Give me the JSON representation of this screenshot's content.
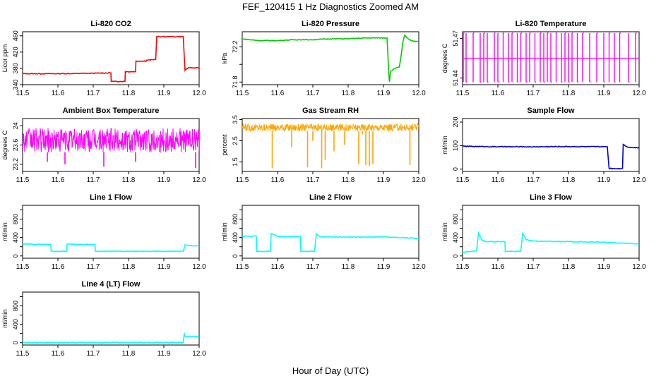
{
  "figure": {
    "title": "FEF_120415 1 Hz Diagnostics Zoomed AM",
    "xlabel": "Hour of Day (UTC)"
  },
  "chart_data": [
    {
      "type": "line",
      "title": "Li-820 CO2",
      "ylabel": "Licor ppm",
      "color": "#ff0000",
      "xlim": [
        11.5,
        12.0
      ],
      "ylim": [
        340,
        470
      ],
      "xticks": [
        11.5,
        11.6,
        11.7,
        11.8,
        11.9,
        12.0
      ],
      "yticks": [
        340,
        380,
        420,
        460
      ],
      "x": [
        11.5,
        11.6,
        11.7,
        11.75,
        11.751,
        11.76,
        11.79,
        11.791,
        11.82,
        11.821,
        11.85,
        11.851,
        11.877,
        11.88,
        11.92,
        11.955,
        11.96,
        11.97,
        12.0
      ],
      "y": [
        367,
        367,
        368,
        369,
        348,
        348,
        348,
        372,
        372,
        398,
        398,
        400,
        402,
        458,
        458,
        458,
        375,
        382,
        381
      ]
    },
    {
      "type": "line",
      "title": "Li-820 Pressure",
      "ylabel": "kPa",
      "color": "#00cc00",
      "xlim": [
        11.5,
        12.0
      ],
      "ylim": [
        71.77,
        72.37
      ],
      "xticks": [
        11.5,
        11.6,
        11.7,
        11.8,
        11.9,
        12.0
      ],
      "yticks": [
        71.8,
        72.0,
        72.2
      ],
      "yticklabels": [
        "71.8",
        "",
        "72.2"
      ],
      "x": [
        11.5,
        11.52,
        11.55,
        11.6,
        11.65,
        11.7,
        11.75,
        11.8,
        11.85,
        11.9,
        11.91,
        11.912,
        11.915,
        11.917,
        11.92,
        11.93,
        11.945,
        11.95,
        11.955,
        11.96,
        11.97,
        11.98,
        11.99,
        12.0
      ],
      "y": [
        72.29,
        72.28,
        72.27,
        72.27,
        72.28,
        72.28,
        72.29,
        72.29,
        72.3,
        72.3,
        72.3,
        72.15,
        71.9,
        71.8,
        71.92,
        71.95,
        71.97,
        72.1,
        72.25,
        72.33,
        72.29,
        72.27,
        72.26,
        72.26
      ]
    },
    {
      "type": "line",
      "title": "Li-820 Temperature",
      "ylabel": "degrees C",
      "color": "#ff00ff",
      "xlim": [
        11.5,
        12.0
      ],
      "ylim": [
        51.435,
        51.475
      ],
      "xticks": [
        11.5,
        11.6,
        11.7,
        11.8,
        11.9,
        12.0
      ],
      "yticks": [
        51.44,
        51.47
      ],
      "base": 51.455,
      "low": 51.437,
      "high": 51.474,
      "spikes": [
        11.502,
        11.51,
        11.53,
        11.55,
        11.56,
        11.57,
        11.59,
        11.6,
        11.615,
        11.63,
        11.64,
        11.655,
        11.665,
        11.68,
        11.69,
        11.705,
        11.72,
        11.73,
        11.74,
        11.75,
        11.765,
        11.78,
        11.79,
        11.8,
        11.81,
        11.825,
        11.84,
        11.86,
        11.88,
        11.9,
        11.915,
        11.93,
        11.945,
        11.97,
        11.99
      ]
    },
    {
      "type": "line",
      "title": "Ambient Box Temperature",
      "ylabel": "degrees C",
      "color": "#ff00ff",
      "xlim": [
        11.5,
        12.0
      ],
      "ylim": [
        23.05,
        24.15
      ],
      "xticks": [
        11.5,
        11.6,
        11.7,
        11.8,
        11.9,
        12.0
      ],
      "yticks": [
        23.2,
        23.6,
        24.0
      ],
      "band": [
        23.45,
        23.95
      ],
      "dips": [
        {
          "x": 11.57,
          "y": 23.25
        },
        {
          "x": 11.62,
          "y": 23.2
        },
        {
          "x": 11.73,
          "y": 23.15
        },
        {
          "x": 11.82,
          "y": 23.25
        },
        {
          "x": 11.99,
          "y": 23.12
        }
      ]
    },
    {
      "type": "line",
      "title": "Gas Stream RH",
      "ylabel": "percent",
      "color": "#ffa500",
      "xlim": [
        11.5,
        12.0
      ],
      "ylim": [
        1.05,
        3.55
      ],
      "xticks": [
        11.5,
        11.6,
        11.7,
        11.8,
        11.9,
        12.0
      ],
      "yticks": [
        1.5,
        2.5,
        3.5
      ],
      "band": [
        2.95,
        3.3
      ],
      "dips": [
        {
          "x": 11.585,
          "y": 1.2
        },
        {
          "x": 11.64,
          "y": 2.2
        },
        {
          "x": 11.685,
          "y": 1.25
        },
        {
          "x": 11.7,
          "y": 2.5
        },
        {
          "x": 11.725,
          "y": 1.2
        },
        {
          "x": 11.735,
          "y": 1.6
        },
        {
          "x": 11.76,
          "y": 2.0
        },
        {
          "x": 11.79,
          "y": 2.3
        },
        {
          "x": 11.83,
          "y": 1.4
        },
        {
          "x": 11.84,
          "y": 2.8
        },
        {
          "x": 11.85,
          "y": 1.35
        },
        {
          "x": 11.86,
          "y": 1.3
        },
        {
          "x": 11.87,
          "y": 1.4
        },
        {
          "x": 11.975,
          "y": 1.35
        }
      ]
    },
    {
      "type": "line",
      "title": "Sample Flow",
      "ylabel": "ml/min",
      "color": "#0000cc",
      "xlim": [
        11.5,
        12.0
      ],
      "ylim": [
        -10,
        215
      ],
      "xticks": [
        11.5,
        11.6,
        11.7,
        11.8,
        11.9,
        12.0
      ],
      "yticks": [
        0,
        100,
        200
      ],
      "x": [
        11.5,
        11.6,
        11.7,
        11.8,
        11.9,
        11.91,
        11.915,
        11.95,
        11.953,
        11.955,
        11.96,
        11.97,
        12.0
      ],
      "y": [
        97,
        95,
        95,
        96,
        95,
        95,
        3,
        2,
        3,
        105,
        100,
        93,
        90
      ]
    },
    {
      "type": "line",
      "title": "Line 1 Flow",
      "ylabel": "ml/min",
      "color": "#00ffff",
      "xlim": [
        11.5,
        12.0
      ],
      "ylim": [
        -50,
        1100
      ],
      "xticks": [
        11.5,
        11.6,
        11.7,
        11.8,
        11.9,
        12.0
      ],
      "yticks": [
        0,
        200,
        400,
        600,
        800,
        1000
      ],
      "yticklabels": [
        "0",
        "",
        "400",
        "",
        "800",
        ""
      ],
      "x": [
        11.5,
        11.58,
        11.581,
        11.625,
        11.626,
        11.705,
        11.706,
        11.8,
        11.9,
        11.955,
        11.96,
        11.97,
        12.0
      ],
      "y": [
        255,
        250,
        100,
        100,
        255,
        250,
        100,
        100,
        100,
        100,
        240,
        225,
        220
      ]
    },
    {
      "type": "line",
      "title": "Line 2 Flow",
      "ylabel": "ml/min",
      "color": "#00ffff",
      "xlim": [
        11.5,
        12.0
      ],
      "ylim": [
        -50,
        1100
      ],
      "xticks": [
        11.5,
        11.6,
        11.7,
        11.8,
        11.9,
        12.0
      ],
      "yticks": [
        0,
        200,
        400,
        600,
        800,
        1000
      ],
      "yticklabels": [
        "0",
        "",
        "400",
        "",
        "800",
        ""
      ],
      "x": [
        11.5,
        11.54,
        11.541,
        11.58,
        11.582,
        11.6,
        11.665,
        11.666,
        11.705,
        11.71,
        11.72,
        11.8,
        11.9,
        11.98,
        12.0
      ],
      "y": [
        430,
        430,
        100,
        100,
        490,
        420,
        425,
        100,
        100,
        480,
        415,
        410,
        410,
        390,
        370
      ]
    },
    {
      "type": "line",
      "title": "Line 3 Flow",
      "ylabel": "ml/min",
      "color": "#00ffff",
      "xlim": [
        11.5,
        12.0
      ],
      "ylim": [
        -50,
        1100
      ],
      "xticks": [
        11.5,
        11.6,
        11.7,
        11.8,
        11.9,
        12.0
      ],
      "yticks": [
        0,
        200,
        400,
        600,
        800,
        1000
      ],
      "yticklabels": [
        "0",
        "",
        "400",
        "",
        "800",
        ""
      ],
      "x": [
        11.5,
        11.54,
        11.545,
        11.555,
        11.57,
        11.62,
        11.621,
        11.665,
        11.67,
        11.68,
        11.7,
        11.8,
        11.9,
        11.98,
        12.0
      ],
      "y": [
        80,
        110,
        500,
        340,
        310,
        310,
        100,
        100,
        490,
        360,
        320,
        310,
        300,
        270,
        260
      ]
    },
    {
      "type": "line",
      "title": "Line 4 (LT) Flow",
      "ylabel": "ml/min",
      "color": "#00ffff",
      "xlim": [
        11.5,
        12.0
      ],
      "ylim": [
        -50,
        1100
      ],
      "xticks": [
        11.5,
        11.6,
        11.7,
        11.8,
        11.9,
        12.0
      ],
      "yticks": [
        0,
        200,
        400,
        600,
        800,
        1000
      ],
      "yticklabels": [
        "0",
        "",
        "400",
        "",
        "800",
        ""
      ],
      "x": [
        11.5,
        11.6,
        11.7,
        11.8,
        11.9,
        11.955,
        11.958,
        11.96,
        11.97,
        12.0
      ],
      "y": [
        5,
        5,
        5,
        5,
        5,
        5,
        210,
        140,
        135,
        135
      ]
    }
  ]
}
